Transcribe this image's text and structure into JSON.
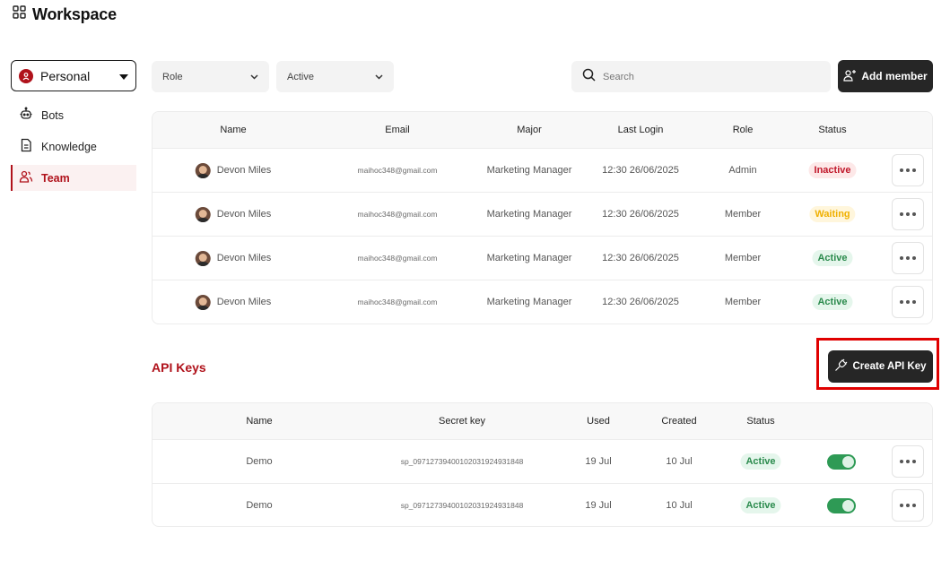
{
  "header": {
    "title": "Workspace",
    "icon": "grid-icon"
  },
  "sidebar": {
    "workspace": {
      "label": "Personal"
    },
    "items": [
      {
        "label": "Bots",
        "icon": "bot-icon",
        "active": false
      },
      {
        "label": "Knowledge",
        "icon": "document-icon",
        "active": false
      },
      {
        "label": "Team",
        "icon": "users-icon",
        "active": true
      }
    ]
  },
  "filters": {
    "role": "Role",
    "status": "Active",
    "search_placeholder": "Search",
    "add_member_label": "Add member"
  },
  "members": {
    "columns": [
      "Name",
      "Email",
      "Major",
      "Last Login",
      "Role",
      "Status"
    ],
    "rows": [
      {
        "name": "Devon Miles",
        "email": "maihoc348@gmail.com",
        "major": "Marketing Manager",
        "last_login": "12:30 26/06/2025",
        "role": "Admin",
        "status": "Inactive"
      },
      {
        "name": "Devon Miles",
        "email": "maihoc348@gmail.com",
        "major": "Marketing Manager",
        "last_login": "12:30 26/06/2025",
        "role": "Member",
        "status": "Waiting"
      },
      {
        "name": "Devon Miles",
        "email": "maihoc348@gmail.com",
        "major": "Marketing Manager",
        "last_login": "12:30 26/06/2025",
        "role": "Member",
        "status": "Active"
      },
      {
        "name": "Devon Miles",
        "email": "maihoc348@gmail.com",
        "major": "Marketing Manager",
        "last_login": "12:30 26/06/2025",
        "role": "Member",
        "status": "Active"
      }
    ]
  },
  "api_keys": {
    "title": "API Keys",
    "create_label": "Create API Key",
    "columns": [
      "Name",
      "Secret key",
      "Used",
      "Created",
      "Status"
    ],
    "rows": [
      {
        "name": "Demo",
        "secret": "sp_09712739400102031924931848",
        "used": "19 Jul",
        "created": "10 Jul",
        "status": "Active",
        "enabled": true
      },
      {
        "name": "Demo",
        "secret": "sp_09712739400102031924931848",
        "used": "19 Jul",
        "created": "10 Jul",
        "status": "Active",
        "enabled": true
      }
    ]
  },
  "colors": {
    "accent": "#b0121b",
    "dark_button": "#262626",
    "active_green": "#2a8a4c",
    "waiting_yellow": "#f0b000",
    "inactive_red": "#c0172a",
    "highlight": "#e00000"
  }
}
